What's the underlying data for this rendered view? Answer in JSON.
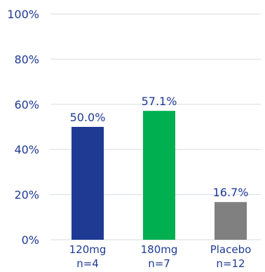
{
  "chart_data": {
    "type": "bar",
    "title": "",
    "xlabel": "",
    "ylabel": "",
    "categories": [
      {
        "name": "120mg",
        "n": "n=4"
      },
      {
        "name": "180mg",
        "n": "n=7"
      },
      {
        "name": "Placebo",
        "n": "n=12"
      }
    ],
    "values": [
      50.0,
      57.1,
      16.7
    ],
    "value_labels": [
      "50.0%",
      "57.1%",
      "16.7%"
    ],
    "colors": [
      "#1f3a93",
      "#00b050",
      "#808080"
    ],
    "ylim": [
      0,
      100
    ],
    "yticks": [
      0,
      20,
      40,
      60,
      80,
      100
    ],
    "ytick_labels": [
      "0%",
      "20%",
      "40%",
      "60%",
      "80%",
      "100%"
    ],
    "grid": true,
    "legend": "none"
  },
  "style": {
    "text_color": "#1f3a93",
    "grid_color": "#d7dbe3"
  }
}
